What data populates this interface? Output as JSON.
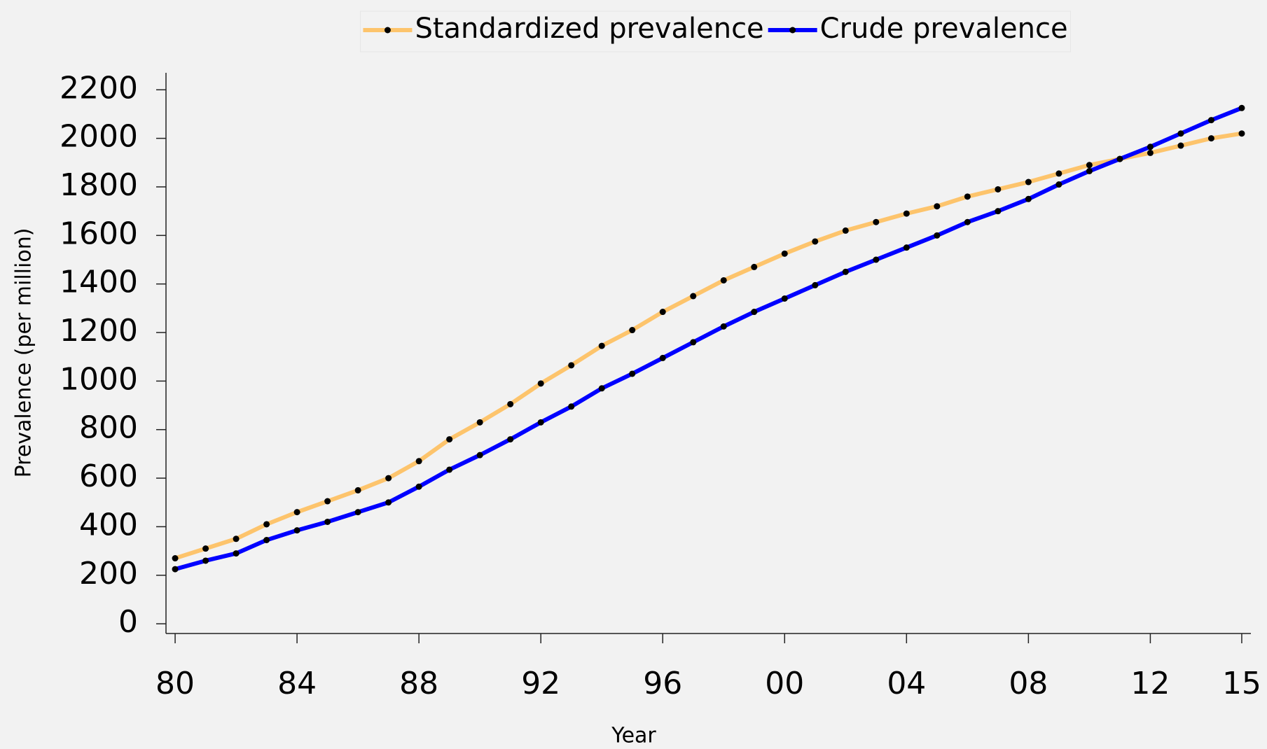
{
  "chart_data": {
    "type": "line",
    "x_label": "Year",
    "y_label": "Prevalence (per million)",
    "x": [
      1980,
      1981,
      1982,
      1983,
      1984,
      1985,
      1986,
      1987,
      1988,
      1989,
      1990,
      1991,
      1992,
      1993,
      1994,
      1995,
      1996,
      1997,
      1998,
      1999,
      2000,
      2001,
      2002,
      2003,
      2004,
      2005,
      2006,
      2007,
      2008,
      2009,
      2010,
      2011,
      2012,
      2013,
      2014,
      2015
    ],
    "series": [
      {
        "name": "Standardized prevalence",
        "color": "#fdc46c",
        "values": [
          270,
          310,
          350,
          410,
          460,
          505,
          550,
          600,
          670,
          760,
          830,
          905,
          990,
          1065,
          1145,
          1210,
          1285,
          1350,
          1415,
          1470,
          1525,
          1575,
          1620,
          1655,
          1690,
          1720,
          1760,
          1790,
          1820,
          1855,
          1890,
          1915,
          1940,
          1970,
          2000,
          2020
        ]
      },
      {
        "name": "Crude prevalence",
        "color": "#0000ff",
        "values": [
          225,
          260,
          290,
          345,
          385,
          420,
          460,
          500,
          565,
          635,
          695,
          760,
          830,
          895,
          970,
          1030,
          1095,
          1160,
          1225,
          1285,
          1340,
          1395,
          1450,
          1500,
          1550,
          1600,
          1655,
          1700,
          1750,
          1810,
          1865,
          1915,
          1965,
          2020,
          2075,
          2125
        ]
      }
    ],
    "xlim": [
      1979.7,
      2015.3
    ],
    "xticks": [
      {
        "value": 1980,
        "label": "80"
      },
      {
        "value": 1984,
        "label": "84"
      },
      {
        "value": 1988,
        "label": "88"
      },
      {
        "value": 1992,
        "label": "92"
      },
      {
        "value": 1996,
        "label": "96"
      },
      {
        "value": 2000,
        "label": "00"
      },
      {
        "value": 2004,
        "label": "04"
      },
      {
        "value": 2008,
        "label": "08"
      },
      {
        "value": 2012,
        "label": "12"
      },
      {
        "value": 2015,
        "label": "15"
      }
    ],
    "ylim": [
      -40,
      2270
    ],
    "yticks": [
      0,
      200,
      400,
      600,
      800,
      1000,
      1200,
      1400,
      1600,
      1800,
      2000,
      2200
    ],
    "marker_color": "#000000",
    "legend": "top"
  }
}
